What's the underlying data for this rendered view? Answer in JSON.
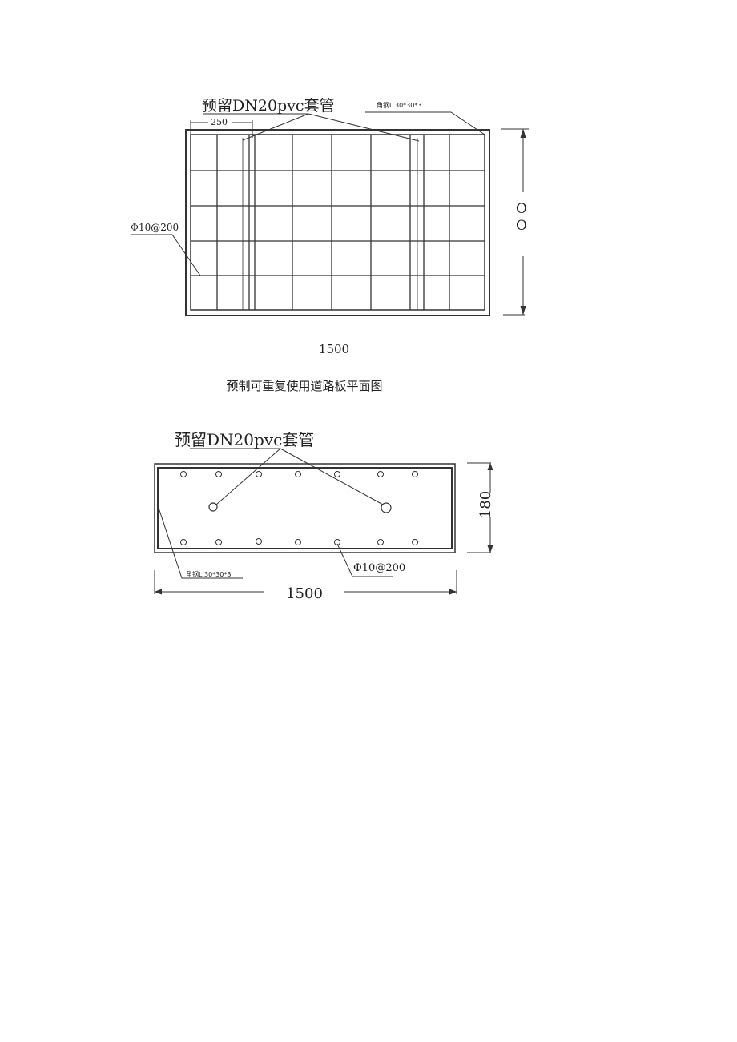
{
  "plan_view": {
    "sleeve_label": "预留DN20pvc套管",
    "angle_steel_label": "角钢L.30*30*3",
    "spacing_dim": "250",
    "rebar_label": "Ф10@200",
    "height_dim_top": "O",
    "height_dim_bottom": "O",
    "width_dim": "1500"
  },
  "caption": "预制可重复使用道路板平面图",
  "section_view": {
    "sleeve_label": "预留DN20pvc套管",
    "angle_steel_label": "角钢L.30*30*3",
    "rebar_label": "Ф10@200",
    "height_dim": "180",
    "width_dim": "1500"
  }
}
